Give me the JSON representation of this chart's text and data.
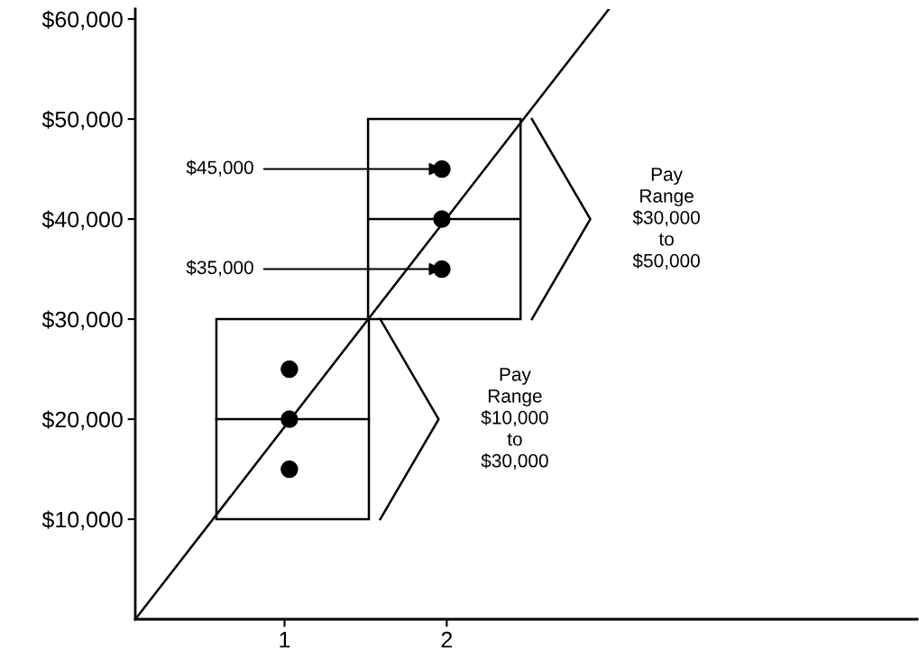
{
  "chart_data": {
    "type": "scatter",
    "xlim": [
      0.08,
      4.9
    ],
    "xticks": [
      1,
      2
    ],
    "ylim": [
      0,
      61000
    ],
    "yticks": [
      {
        "value": 10000,
        "label": "$10,000"
      },
      {
        "value": 20000,
        "label": "$20,000"
      },
      {
        "value": 30000,
        "label": "$30,000"
      },
      {
        "value": 40000,
        "label": "$40,000"
      },
      {
        "value": 50000,
        "label": "$50,000"
      },
      {
        "value": 60000,
        "label": "$60,000"
      }
    ],
    "grid": false,
    "legend": false,
    "series": [
      {
        "type": "line",
        "color": "#000000",
        "x": [
          0.08,
          3.0
        ],
        "values": [
          0,
          61000
        ]
      },
      {
        "type": "bar",
        "color": "#000000",
        "x": [
          1.05,
          1.985
        ],
        "base": [
          10000,
          30000
        ],
        "values": [
          20000,
          20000
        ]
      },
      {
        "type": "line",
        "color": "#000000",
        "x": [
          0.58,
          1.52
        ],
        "values": [
          20000,
          20000
        ]
      },
      {
        "type": "line",
        "color": "#000000",
        "x": [
          1.52,
          2.45
        ],
        "values": [
          40000,
          40000
        ]
      },
      {
        "color": "#000000",
        "marker": "circle",
        "x": [
          1.03,
          1.03,
          1.03,
          1.97,
          1.97,
          1.97
        ],
        "values": [
          25000,
          20000,
          15000,
          45000,
          40000,
          35000
        ]
      }
    ],
    "annotations": [
      {
        "text": "$45,000",
        "x": 1.97,
        "y": 45000
      },
      {
        "text": "$35,000",
        "x": 1.97,
        "y": 35000
      },
      "Pay\nRange\n$10,000\nto\n$30,000",
      "Pay\nRange\n$30,000\nto\n$50,000"
    ]
  }
}
